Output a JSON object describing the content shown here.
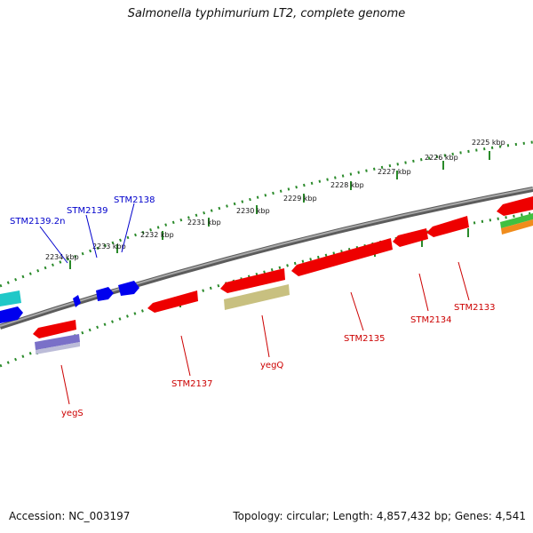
{
  "title": "Salmonella typhimurium LT2, complete genome",
  "footer": {
    "accession": "Accession: NC_003197",
    "summary": "Topology: circular; Length: 4,857,432 bp; Genes: 4,541"
  },
  "colors": {
    "forward_gene": "#0000ee",
    "reverse_gene": "#ee0000",
    "reverse_label": "#cc0000",
    "forward_label": "#0000cc",
    "backbone": "#7a7a7a",
    "ticks": "#2a8a2a",
    "cyan_feature": "#20c8c8",
    "olive_feature": "#c8c080",
    "purple_feature": "#7a70c8",
    "green_feature": "#40c040",
    "orange_feature": "#f08c1c"
  },
  "scale": {
    "unit": "kbp",
    "ticks": [
      {
        "value": 2225,
        "label": "2225 kbp"
      },
      {
        "value": 2226,
        "label": "2226 kbp"
      },
      {
        "value": 2227,
        "label": "2227 kbp"
      },
      {
        "value": 2228,
        "label": "2228 kbp"
      },
      {
        "value": 2229,
        "label": "2229 kbp"
      },
      {
        "value": 2230,
        "label": "2230 kbp"
      },
      {
        "value": 2231,
        "label": "2231 kbp"
      },
      {
        "value": 2232,
        "label": "2232 kbp"
      },
      {
        "value": 2233,
        "label": "2233 kbp"
      },
      {
        "value": 2234,
        "label": "2234 kbp"
      }
    ]
  },
  "genes_forward": [
    {
      "label": "STM2138"
    },
    {
      "label": "STM2139"
    },
    {
      "label": "STM2139.2n"
    }
  ],
  "genes_reverse": [
    {
      "label": "STM2133"
    },
    {
      "label": "STM2134"
    },
    {
      "label": "STM2135"
    },
    {
      "label": "yegQ"
    },
    {
      "label": "STM2137"
    },
    {
      "label": "yegS"
    }
  ]
}
